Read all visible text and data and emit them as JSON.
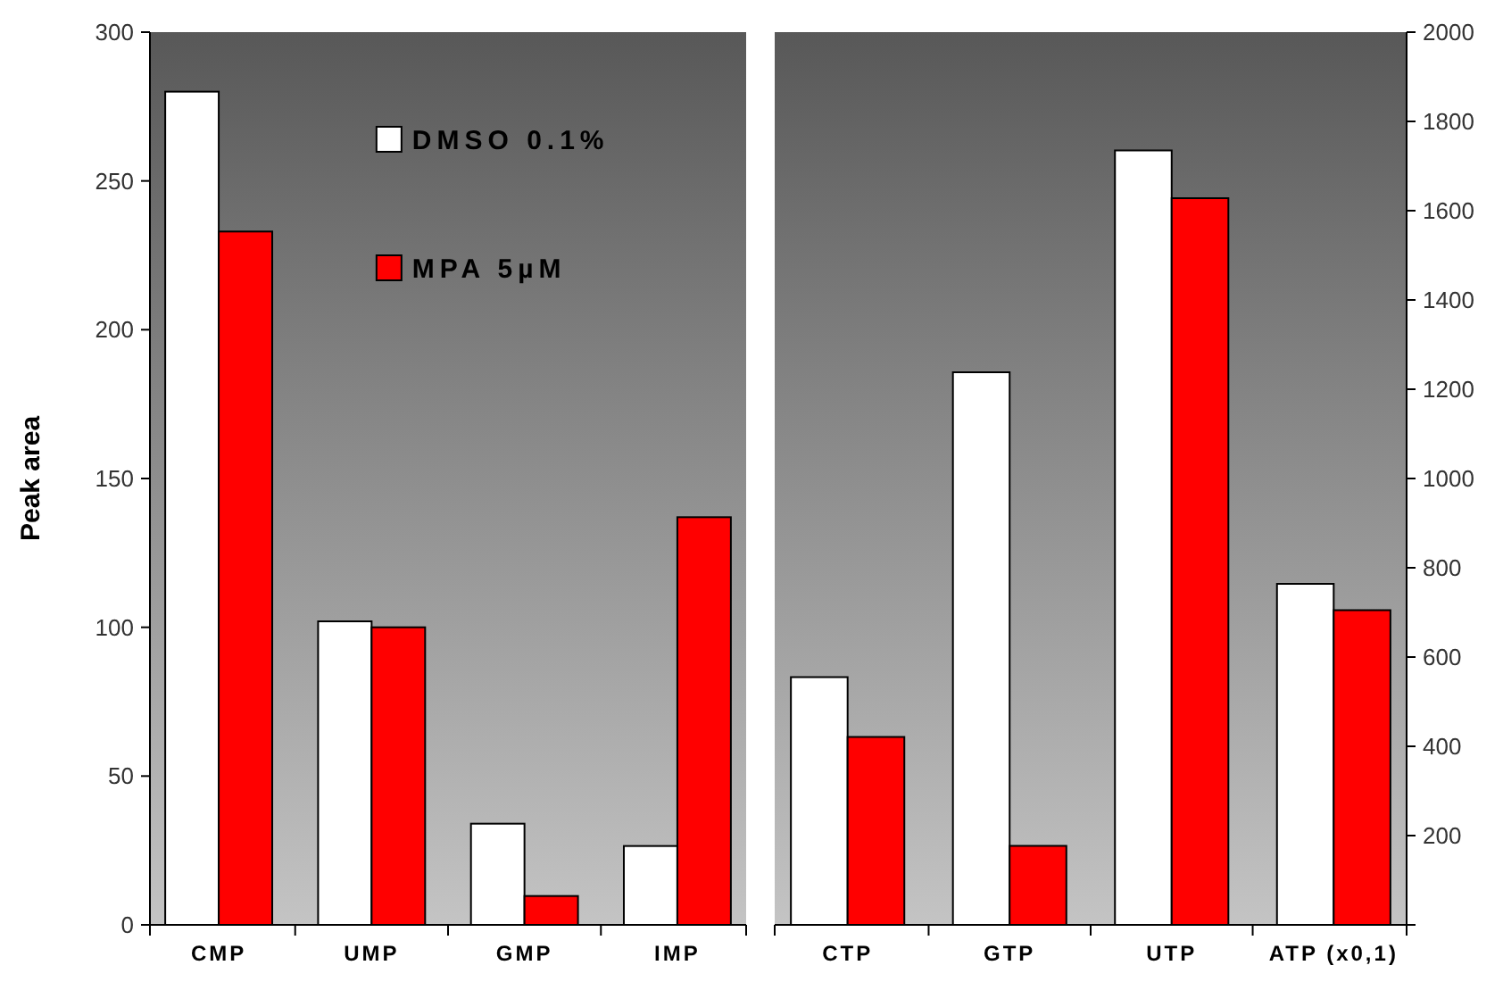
{
  "chart_data": [
    {
      "type": "bar",
      "categories": [
        "CMP",
        "UMP",
        "GMP",
        "IMP"
      ],
      "ylabel": "Peak area",
      "ylim": [
        0,
        300
      ],
      "yticks": [
        0,
        50,
        100,
        150,
        200,
        250,
        300
      ],
      "legend": "top right",
      "grid": false,
      "series": [
        {
          "name": "DMSO 0.1%",
          "color": "#ffffff",
          "values": [
            280,
            102,
            34,
            26.5
          ]
        },
        {
          "name": "MPA 5µM",
          "color": "#ff0000",
          "values": [
            233,
            100,
            9.7,
            137
          ]
        }
      ]
    },
    {
      "type": "bar",
      "categories": [
        "CTP",
        "GTP",
        "UTP",
        "ATP (x0,1)"
      ],
      "y2lim": [
        0,
        2000
      ],
      "y2ticks": [
        {
          "value": 0,
          "label": null
        },
        200,
        400,
        600,
        800,
        1000,
        1200,
        1400,
        1600,
        1800,
        2000
      ],
      "legend": false,
      "grid": false,
      "series": [
        {
          "color": "#ffffff",
          "axis": "y2",
          "values": [
            555,
            1238,
            1735,
            764
          ]
        },
        {
          "color": "#ff0000",
          "axis": "y2",
          "values": [
            421,
            177,
            1628,
            705
          ]
        }
      ]
    }
  ]
}
